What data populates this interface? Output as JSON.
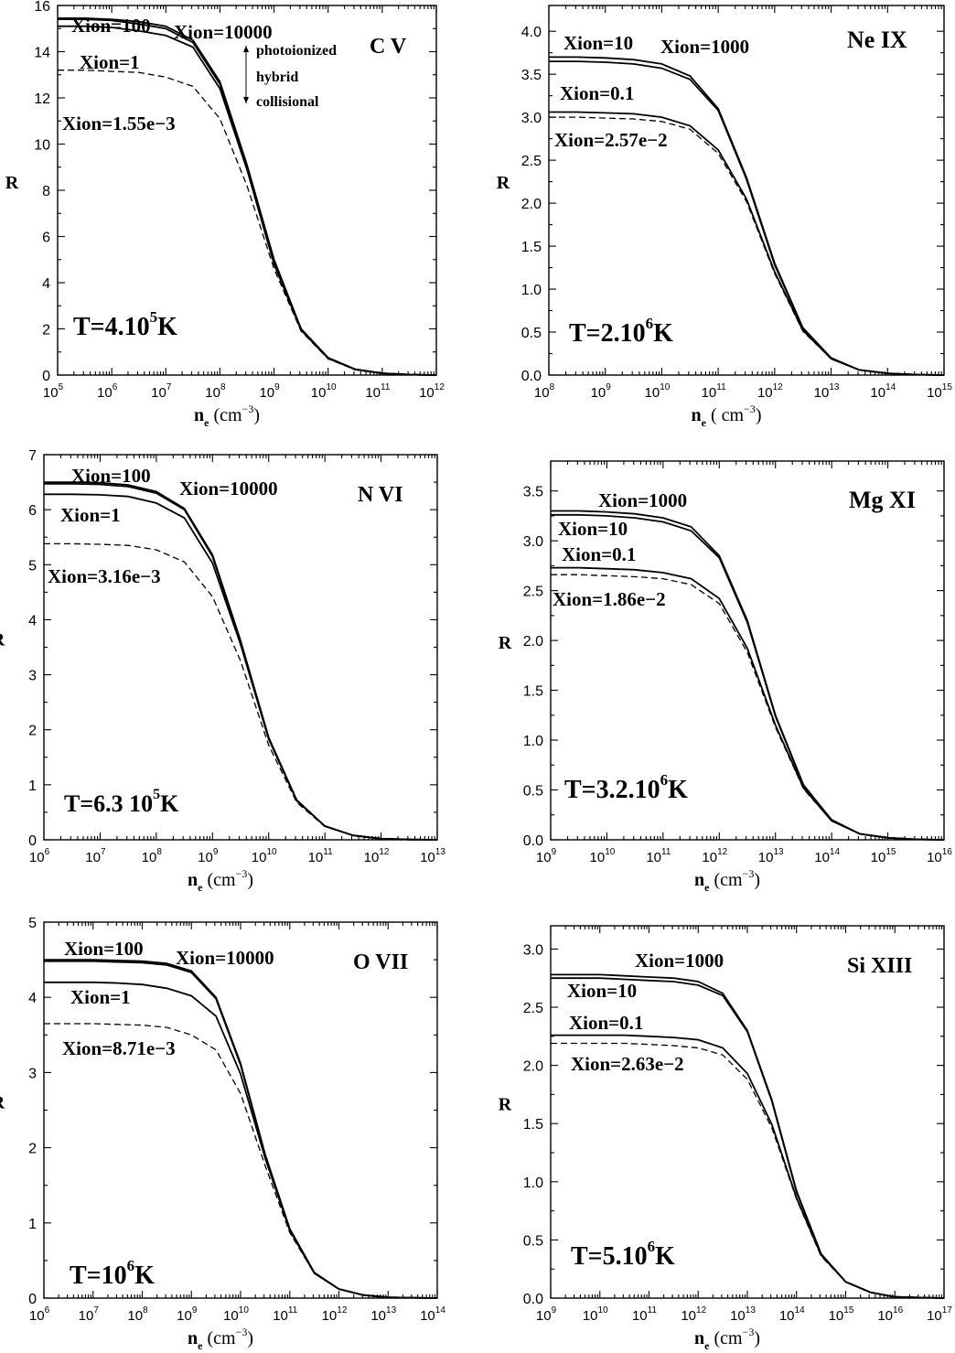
{
  "chart_data": [
    {
      "type": "line",
      "ion": "C V",
      "temperature": {
        "base": "T=4.10",
        "exp": "5",
        "unit": "K"
      },
      "xlabel": {
        "main": "n",
        "sub": "e",
        "unit": "(cm",
        "exp": "−3",
        "close": ")"
      },
      "ylabel": "R",
      "xlog_range": [
        5,
        12
      ],
      "ylim": [
        0,
        16
      ],
      "yticks": [
        "0",
        "2",
        "4",
        "6",
        "8",
        "10",
        "12",
        "14",
        "16"
      ],
      "ytick_values": [
        0,
        2,
        4,
        6,
        8,
        10,
        12,
        14,
        16
      ],
      "arrow_notes": [
        "photoionized",
        "hybrid",
        "collisional"
      ],
      "x_log10": [
        5,
        5.5,
        6,
        6.5,
        7,
        7.5,
        8,
        8.5,
        9,
        9.5,
        10,
        10.5,
        11,
        11.5,
        12
      ],
      "series": [
        {
          "label": "Xion=100",
          "style": "solid",
          "y": [
            15.4,
            15.4,
            15.35,
            15.2,
            15.0,
            14.4,
            12.6,
            9.0,
            4.9,
            2.0,
            0.75,
            0.25,
            0.08,
            0.02,
            0.0
          ]
        },
        {
          "label": "Xion=10000",
          "style": "solid",
          "y": [
            15.45,
            15.45,
            15.4,
            15.3,
            15.1,
            14.5,
            12.7,
            9.1,
            5.0,
            2.0,
            0.75,
            0.25,
            0.08,
            0.02,
            0.0
          ]
        },
        {
          "label": "Xion=1",
          "style": "solid",
          "y": [
            15.1,
            15.1,
            15.05,
            14.9,
            14.7,
            14.2,
            12.4,
            8.9,
            4.8,
            1.95,
            0.72,
            0.24,
            0.07,
            0.02,
            0.0
          ]
        },
        {
          "label": "Xion=1.55e−3",
          "style": "dashed",
          "y": [
            13.2,
            13.2,
            13.15,
            13.1,
            12.9,
            12.5,
            11.1,
            8.2,
            4.6,
            1.9,
            0.7,
            0.23,
            0.07,
            0.02,
            0.0
          ]
        }
      ]
    },
    {
      "type": "line",
      "ion": "Ne IX",
      "temperature": {
        "base": "T=2.10",
        "exp": "6",
        "unit": "K"
      },
      "xlabel": {
        "main": "n",
        "sub": "e",
        "unit": "( cm",
        "exp": "−3",
        "close": ")"
      },
      "ylabel": "R",
      "xlog_range": [
        8,
        15
      ],
      "ylim": [
        0,
        4.3
      ],
      "yticks": [
        "0.0",
        "0.5",
        "1.0",
        "1.5",
        "2.0",
        "2.5",
        "3.0",
        "3.5",
        "4.0"
      ],
      "ytick_values": [
        0,
        0.5,
        1.0,
        1.5,
        2.0,
        2.5,
        3.0,
        3.5,
        4.0
      ],
      "x_log10": [
        8,
        8.5,
        9,
        9.5,
        10,
        10.5,
        11,
        11.5,
        12,
        12.5,
        13,
        13.5,
        14,
        14.5,
        15
      ],
      "series": [
        {
          "label": "Xion=10",
          "style": "solid",
          "y": [
            3.7,
            3.7,
            3.69,
            3.67,
            3.62,
            3.48,
            3.1,
            2.3,
            1.3,
            0.55,
            0.2,
            0.06,
            0.02,
            0.005,
            0.0
          ]
        },
        {
          "label": "Xion=1000",
          "style": "solid",
          "y": [
            3.65,
            3.65,
            3.64,
            3.62,
            3.57,
            3.44,
            3.08,
            2.28,
            1.28,
            0.54,
            0.19,
            0.06,
            0.02,
            0.005,
            0.0
          ]
        },
        {
          "label": "Xion=0.1",
          "style": "solid",
          "y": [
            3.06,
            3.06,
            3.05,
            3.04,
            3.0,
            2.9,
            2.62,
            2.05,
            1.2,
            0.52,
            0.19,
            0.06,
            0.02,
            0.005,
            0.0
          ]
        },
        {
          "label": "Xion=2.57e−2",
          "style": "dashed",
          "y": [
            3.0,
            3.0,
            2.99,
            2.98,
            2.95,
            2.86,
            2.58,
            2.02,
            1.18,
            0.51,
            0.19,
            0.06,
            0.02,
            0.005,
            0.0
          ]
        }
      ]
    },
    {
      "type": "line",
      "ion": "N VI",
      "temperature": {
        "base": "T=6.3 10",
        "exp": "5",
        "unit": "K"
      },
      "xlabel": {
        "main": "n",
        "sub": "e",
        "unit": "(cm",
        "exp": "−3",
        "close": ")"
      },
      "ylabel": "R",
      "xlog_range": [
        6,
        13
      ],
      "ylim": [
        0,
        7
      ],
      "yticks": [
        "0",
        "1",
        "2",
        "3",
        "4",
        "5",
        "6",
        "7"
      ],
      "ytick_values": [
        0,
        1,
        2,
        3,
        4,
        5,
        6,
        7
      ],
      "x_log10": [
        6,
        6.5,
        7,
        7.5,
        8,
        8.5,
        9,
        9.5,
        10,
        10.5,
        11,
        11.5,
        12,
        12.5,
        13
      ],
      "series": [
        {
          "label": "Xion=100",
          "style": "solid",
          "y": [
            6.47,
            6.47,
            6.46,
            6.42,
            6.3,
            6.0,
            5.15,
            3.6,
            1.85,
            0.72,
            0.25,
            0.08,
            0.02,
            0.005,
            0.0
          ]
        },
        {
          "label": "Xion=10000",
          "style": "solid",
          "y": [
            6.5,
            6.5,
            6.49,
            6.45,
            6.33,
            6.02,
            5.18,
            3.62,
            1.86,
            0.72,
            0.25,
            0.08,
            0.02,
            0.005,
            0.0
          ]
        },
        {
          "label": "Xion=1",
          "style": "solid",
          "y": [
            6.28,
            6.28,
            6.27,
            6.24,
            6.12,
            5.85,
            5.03,
            3.55,
            1.83,
            0.71,
            0.25,
            0.08,
            0.02,
            0.005,
            0.0
          ]
        },
        {
          "label": "Xion=3.16e−3",
          "style": "dashed",
          "y": [
            5.38,
            5.38,
            5.37,
            5.35,
            5.27,
            5.05,
            4.42,
            3.25,
            1.72,
            0.68,
            0.24,
            0.08,
            0.02,
            0.005,
            0.0
          ]
        }
      ]
    },
    {
      "type": "line",
      "ion": "Mg XI",
      "temperature": {
        "base": "T=3.2.10",
        "exp": "6",
        "unit": "K"
      },
      "xlabel": {
        "main": "n",
        "sub": "e",
        "unit": "(cm",
        "exp": "−3",
        "close": ")"
      },
      "ylabel": "R",
      "xlog_range": [
        9,
        16
      ],
      "ylim": [
        0,
        3.8
      ],
      "yticks": [
        "0.0",
        "0.5",
        "1.0",
        "1.5",
        "2.0",
        "2.5",
        "3.0",
        "3.5"
      ],
      "ytick_values": [
        0,
        0.5,
        1.0,
        1.5,
        2.0,
        2.5,
        3.0,
        3.5
      ],
      "x_log10": [
        9,
        9.5,
        10,
        10.5,
        11,
        11.5,
        12,
        12.5,
        13,
        13.5,
        14,
        14.5,
        15,
        15.5,
        16
      ],
      "series": [
        {
          "label": "Xion=1000",
          "style": "solid",
          "y": [
            3.3,
            3.3,
            3.29,
            3.27,
            3.23,
            3.14,
            2.85,
            2.2,
            1.25,
            0.55,
            0.2,
            0.06,
            0.02,
            0.005,
            0.0
          ]
        },
        {
          "label": "Xion=10",
          "style": "solid",
          "y": [
            3.26,
            3.26,
            3.25,
            3.23,
            3.19,
            3.1,
            2.83,
            2.18,
            1.24,
            0.54,
            0.2,
            0.06,
            0.02,
            0.005,
            0.0
          ]
        },
        {
          "label": "Xion=0.1",
          "style": "solid",
          "y": [
            2.73,
            2.73,
            2.72,
            2.71,
            2.68,
            2.62,
            2.42,
            1.92,
            1.15,
            0.52,
            0.19,
            0.06,
            0.02,
            0.005,
            0.0
          ]
        },
        {
          "label": "Xion=1.86e−2",
          "style": "dashed",
          "y": [
            2.66,
            2.66,
            2.65,
            2.64,
            2.62,
            2.56,
            2.37,
            1.88,
            1.13,
            0.51,
            0.19,
            0.06,
            0.02,
            0.005,
            0.0
          ]
        }
      ]
    },
    {
      "type": "line",
      "ion": "O VII",
      "temperature": {
        "base": "T=10",
        "exp": "6",
        "unit": "K"
      },
      "xlabel": {
        "main": "n",
        "sub": "e",
        "unit": "(cm",
        "exp": "−3",
        "close": ")"
      },
      "ylabel": "R",
      "xlog_range": [
        6,
        14
      ],
      "ylim": [
        0,
        5
      ],
      "yticks": [
        "0",
        "1",
        "2",
        "3",
        "4",
        "5"
      ],
      "ytick_values": [
        0,
        1,
        2,
        3,
        4,
        5
      ],
      "x_log10": [
        6,
        6.5,
        7,
        7.5,
        8,
        8.5,
        9,
        9.5,
        10,
        10.5,
        11,
        11.5,
        12,
        12.5,
        13,
        13.5,
        14
      ],
      "series": [
        {
          "label": "Xion=100",
          "style": "solid",
          "y": [
            4.48,
            4.48,
            4.48,
            4.47,
            4.46,
            4.43,
            4.33,
            3.98,
            3.1,
            1.9,
            0.92,
            0.34,
            0.12,
            0.04,
            0.01,
            0.005,
            0.0
          ]
        },
        {
          "label": "Xion=10000",
          "style": "solid",
          "y": [
            4.5,
            4.5,
            4.5,
            4.49,
            4.48,
            4.45,
            4.35,
            4.0,
            3.12,
            1.91,
            0.92,
            0.34,
            0.12,
            0.04,
            0.01,
            0.005,
            0.0
          ]
        },
        {
          "label": "Xion=1",
          "style": "solid",
          "y": [
            4.2,
            4.2,
            4.2,
            4.19,
            4.17,
            4.12,
            4.02,
            3.75,
            2.98,
            1.86,
            0.9,
            0.33,
            0.12,
            0.04,
            0.01,
            0.005,
            0.0
          ]
        },
        {
          "label": "Xion=8.71e−3",
          "style": "dashed",
          "y": [
            3.65,
            3.65,
            3.65,
            3.64,
            3.63,
            3.6,
            3.5,
            3.3,
            2.72,
            1.76,
            0.87,
            0.33,
            0.12,
            0.04,
            0.01,
            0.005,
            0.0
          ]
        }
      ]
    },
    {
      "type": "line",
      "ion": "Si XIII",
      "temperature": {
        "base": "T=5.10",
        "exp": "6",
        "unit": "K"
      },
      "xlabel": {
        "main": "n",
        "sub": "e",
        "unit": "(cm",
        "exp": "−3",
        "close": ")"
      },
      "ylabel": "R",
      "xlog_range": [
        9,
        17
      ],
      "ylim": [
        0,
        3.2
      ],
      "yticks": [
        "0.0",
        "0.5",
        "1.0",
        "1.5",
        "2.0",
        "2.5",
        "3.0"
      ],
      "ytick_values": [
        0,
        0.5,
        1.0,
        1.5,
        2.0,
        2.5,
        3.0
      ],
      "x_log10": [
        9,
        9.5,
        10,
        10.5,
        11,
        11.5,
        12,
        12.5,
        13,
        13.5,
        14,
        14.5,
        15,
        15.5,
        16,
        16.5,
        17
      ],
      "series": [
        {
          "label": "Xion=1000",
          "style": "solid",
          "y": [
            2.78,
            2.78,
            2.78,
            2.77,
            2.76,
            2.75,
            2.72,
            2.62,
            2.3,
            1.7,
            0.92,
            0.38,
            0.14,
            0.05,
            0.01,
            0.005,
            0.0
          ]
        },
        {
          "label": "Xion=10",
          "style": "solid",
          "y": [
            2.75,
            2.75,
            2.75,
            2.74,
            2.73,
            2.72,
            2.69,
            2.6,
            2.29,
            1.69,
            0.91,
            0.38,
            0.14,
            0.05,
            0.01,
            0.005,
            0.0
          ]
        },
        {
          "label": "Xion=0.1",
          "style": "solid",
          "y": [
            2.26,
            2.26,
            2.26,
            2.26,
            2.25,
            2.24,
            2.22,
            2.15,
            1.93,
            1.49,
            0.86,
            0.37,
            0.14,
            0.05,
            0.01,
            0.005,
            0.0
          ]
        },
        {
          "label": "Xion=2.63e−2",
          "style": "dashed",
          "y": [
            2.19,
            2.19,
            2.19,
            2.19,
            2.18,
            2.17,
            2.15,
            2.09,
            1.88,
            1.46,
            0.85,
            0.36,
            0.14,
            0.05,
            0.01,
            0.005,
            0.0
          ]
        }
      ]
    }
  ]
}
